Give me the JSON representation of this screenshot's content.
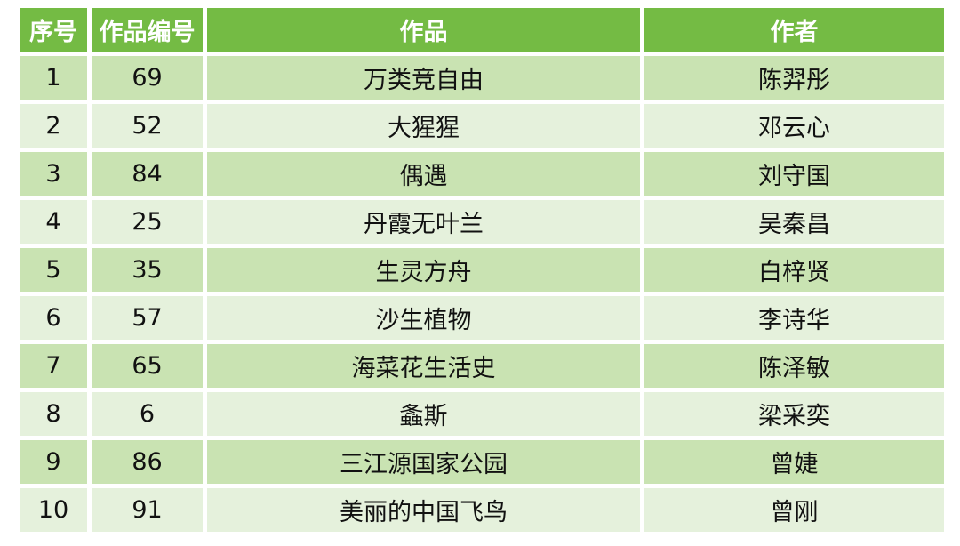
{
  "chart_data": {
    "type": "table",
    "columns": [
      "序号",
      "作品编号",
      "作品",
      "作者"
    ],
    "rows": [
      [
        "1",
        "69",
        "万类竞自由",
        "陈羿彤"
      ],
      [
        "2",
        "52",
        "大猩猩",
        "邓云心"
      ],
      [
        "3",
        "84",
        "偶遇",
        "刘守国"
      ],
      [
        "4",
        "25",
        "丹霞无叶兰",
        "吴秦昌"
      ],
      [
        "5",
        "35",
        "生灵方舟",
        "白梓贤"
      ],
      [
        "6",
        "57",
        "沙生植物",
        "李诗华"
      ],
      [
        "7",
        "65",
        "海菜花生活史",
        "陈泽敏"
      ],
      [
        "8",
        "6",
        "螽斯",
        "梁采奕"
      ],
      [
        "9",
        "86",
        "三江源国家公园",
        "曾婕"
      ],
      [
        "10",
        "91",
        "美丽的中国飞鸟",
        "曾刚"
      ]
    ],
    "colors": {
      "header_bg": "#74BB44",
      "header_text": "#FFFFFF",
      "row_band_dark": "#C9E3B2",
      "row_band_light": "#E5F1DC",
      "body_text": "#111111",
      "background": "#FFFFFF"
    },
    "layout": {
      "banding": "odd data rows dark green, even data rows light green",
      "grid": "white gaps between all cells",
      "text_align": "center"
    }
  }
}
